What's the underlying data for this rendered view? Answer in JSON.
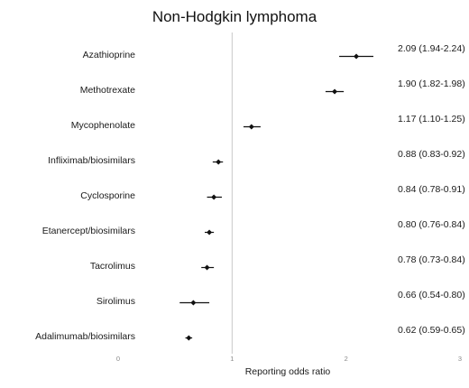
{
  "chart_data": {
    "type": "scatter",
    "subtype": "forest-plot",
    "title": "Non-Hodgkin lymphoma",
    "xlabel": "Reporting odds ratio",
    "xlim": [
      0,
      3
    ],
    "xticks": [
      "0",
      "1",
      "2",
      "3"
    ],
    "reference_line": 1,
    "grid": false,
    "rows": [
      {
        "label": "Azathioprine",
        "estimate": 2.09,
        "lower": 1.94,
        "upper": 2.24,
        "text": "2.09 (1.94-2.24)"
      },
      {
        "label": "Methotrexate",
        "estimate": 1.9,
        "lower": 1.82,
        "upper": 1.98,
        "text": "1.90 (1.82-1.98)"
      },
      {
        "label": "Mycophenolate",
        "estimate": 1.17,
        "lower": 1.1,
        "upper": 1.25,
        "text": "1.17 (1.10-1.25)"
      },
      {
        "label": "Infliximab/biosimilars",
        "estimate": 0.88,
        "lower": 0.83,
        "upper": 0.92,
        "text": "0.88 (0.83-0.92)"
      },
      {
        "label": "Cyclosporine",
        "estimate": 0.84,
        "lower": 0.78,
        "upper": 0.91,
        "text": "0.84 (0.78-0.91)"
      },
      {
        "label": "Etanercept/biosimilars",
        "estimate": 0.8,
        "lower": 0.76,
        "upper": 0.84,
        "text": "0.80 (0.76-0.84)"
      },
      {
        "label": "Tacrolimus",
        "estimate": 0.78,
        "lower": 0.73,
        "upper": 0.84,
        "text": "0.78 (0.73-0.84)"
      },
      {
        "label": "Sirolimus",
        "estimate": 0.66,
        "lower": 0.54,
        "upper": 0.8,
        "text": "0.66 (0.54-0.80)"
      },
      {
        "label": "Adalimumab/biosimilars",
        "estimate": 0.62,
        "lower": 0.59,
        "upper": 0.65,
        "text": "0.62 (0.59-0.65)"
      }
    ]
  }
}
